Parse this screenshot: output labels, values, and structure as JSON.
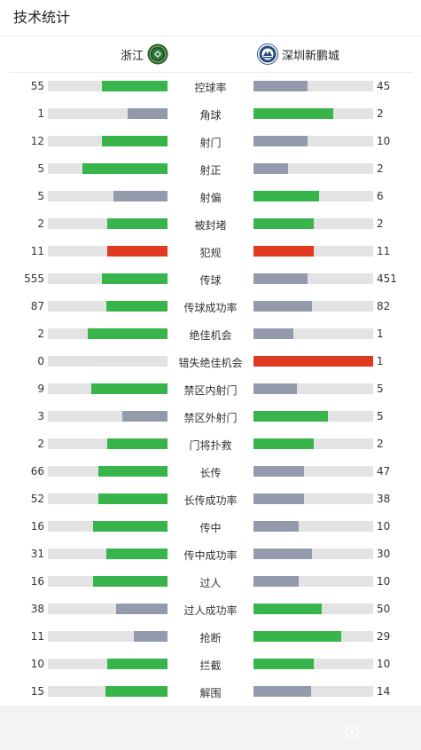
{
  "header": {
    "title": "技术统计"
  },
  "teams": {
    "home": {
      "name": "浙江"
    },
    "away": {
      "name": "深圳新鹏城"
    }
  },
  "colors": {
    "winner": "#37b44a",
    "loser": "#929aab",
    "foul": "#e03a20",
    "track": "#e3e3e3"
  },
  "stats": [
    {
      "label": "控球率",
      "home": "55",
      "away": "45",
      "home_share": 0.55,
      "away_share": 0.45,
      "home_color": "winner",
      "away_color": "loser"
    },
    {
      "label": "角球",
      "home": "1",
      "away": "2",
      "home_share": 0.33,
      "away_share": 0.67,
      "home_color": "loser",
      "away_color": "winner"
    },
    {
      "label": "射门",
      "home": "12",
      "away": "10",
      "home_share": 0.55,
      "away_share": 0.45,
      "home_color": "winner",
      "away_color": "loser"
    },
    {
      "label": "射正",
      "home": "5",
      "away": "2",
      "home_share": 0.71,
      "away_share": 0.29,
      "home_color": "winner",
      "away_color": "loser"
    },
    {
      "label": "射偏",
      "home": "5",
      "away": "6",
      "home_share": 0.45,
      "away_share": 0.55,
      "home_color": "loser",
      "away_color": "winner"
    },
    {
      "label": "被封堵",
      "home": "2",
      "away": "2",
      "home_share": 0.5,
      "away_share": 0.5,
      "home_color": "winner",
      "away_color": "winner"
    },
    {
      "label": "犯规",
      "home": "11",
      "away": "11",
      "home_share": 0.5,
      "away_share": 0.5,
      "home_color": "foul",
      "away_color": "foul"
    },
    {
      "label": "传球",
      "home": "555",
      "away": "451",
      "home_share": 0.55,
      "away_share": 0.45,
      "home_color": "winner",
      "away_color": "loser"
    },
    {
      "label": "传球成功率",
      "home": "87",
      "away": "82",
      "home_share": 0.51,
      "away_share": 0.49,
      "home_color": "winner",
      "away_color": "loser"
    },
    {
      "label": "绝佳机会",
      "home": "2",
      "away": "1",
      "home_share": 0.67,
      "away_share": 0.33,
      "home_color": "winner",
      "away_color": "loser"
    },
    {
      "label": "错失绝佳机会",
      "home": "0",
      "away": "1",
      "home_share": 0,
      "away_share": 1,
      "home_color": "foul",
      "away_color": "foul"
    },
    {
      "label": "禁区内射门",
      "home": "9",
      "away": "5",
      "home_share": 0.64,
      "away_share": 0.36,
      "home_color": "winner",
      "away_color": "loser"
    },
    {
      "label": "禁区外射门",
      "home": "3",
      "away": "5",
      "home_share": 0.38,
      "away_share": 0.62,
      "home_color": "loser",
      "away_color": "winner"
    },
    {
      "label": "门将扑救",
      "home": "2",
      "away": "2",
      "home_share": 0.5,
      "away_share": 0.5,
      "home_color": "winner",
      "away_color": "winner"
    },
    {
      "label": "长传",
      "home": "66",
      "away": "47",
      "home_share": 0.58,
      "away_share": 0.42,
      "home_color": "winner",
      "away_color": "loser"
    },
    {
      "label": "长传成功率",
      "home": "52",
      "away": "38",
      "home_share": 0.58,
      "away_share": 0.42,
      "home_color": "winner",
      "away_color": "loser"
    },
    {
      "label": "传中",
      "home": "16",
      "away": "10",
      "home_share": 0.62,
      "away_share": 0.38,
      "home_color": "winner",
      "away_color": "loser"
    },
    {
      "label": "传中成功率",
      "home": "31",
      "away": "30",
      "home_share": 0.51,
      "away_share": 0.49,
      "home_color": "winner",
      "away_color": "loser"
    },
    {
      "label": "过人",
      "home": "16",
      "away": "10",
      "home_share": 0.62,
      "away_share": 0.38,
      "home_color": "winner",
      "away_color": "loser"
    },
    {
      "label": "过人成功率",
      "home": "38",
      "away": "50",
      "home_share": 0.43,
      "away_share": 0.57,
      "home_color": "loser",
      "away_color": "winner"
    },
    {
      "label": "抢断",
      "home": "11",
      "away": "29",
      "home_share": 0.28,
      "away_share": 0.73,
      "home_color": "loser",
      "away_color": "winner"
    },
    {
      "label": "拦截",
      "home": "10",
      "away": "10",
      "home_share": 0.5,
      "away_share": 0.5,
      "home_color": "winner",
      "away_color": "winner"
    },
    {
      "label": "解围",
      "home": "15",
      "away": "14",
      "home_share": 0.52,
      "away_share": 0.48,
      "home_color": "winner",
      "away_color": "loser"
    }
  ],
  "watermark": {
    "icon": "gear-icon"
  }
}
